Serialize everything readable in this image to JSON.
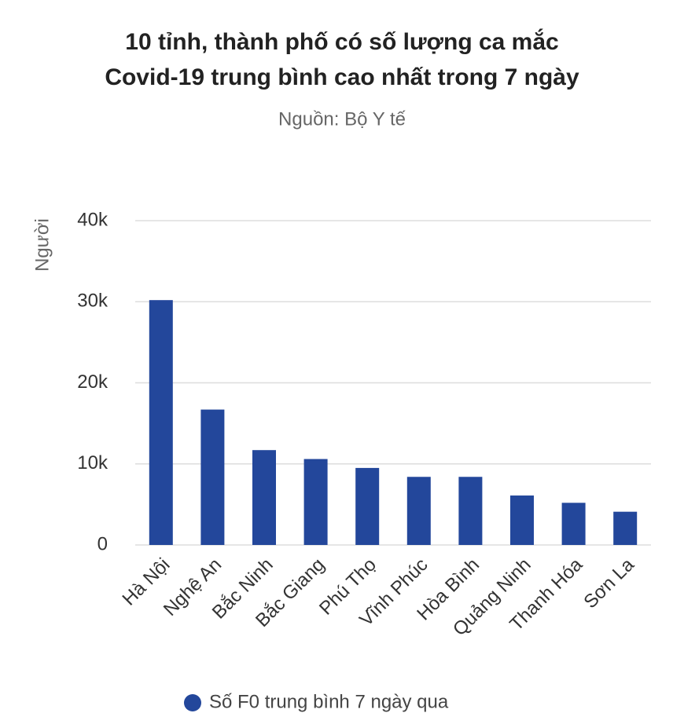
{
  "chart_data": {
    "type": "bar",
    "title": [
      "10 tỉnh, thành phố có số lượng ca mắc",
      "Covid-19 trung bình cao nhất trong 7 ngày"
    ],
    "subtitle": "Nguồn: Bộ Y tế",
    "y_label": "Người",
    "categories": [
      "Hà Nội",
      "Nghệ An",
      "Bắc Ninh",
      "Bắc Giang",
      "Phú Thọ",
      "Vĩnh Phúc",
      "Hòa Bình",
      "Quảng Ninh",
      "Thanh Hóa",
      "Sơn La"
    ],
    "series": [
      {
        "name": "Số F0 trung bình 7 ngày qua",
        "color": "#23479b",
        "values": [
          30200,
          16700,
          11700,
          10600,
          9500,
          8400,
          8400,
          6100,
          5200,
          4100
        ]
      }
    ],
    "ylim": [
      0,
      40000
    ],
    "yticks": [
      0,
      {
        "value": 10000,
        "label": "10k"
      },
      {
        "value": 20000,
        "label": "20k"
      },
      {
        "value": 30000,
        "label": "30k"
      },
      {
        "value": 40000,
        "label": "40k"
      }
    ],
    "grid": true,
    "legend": "bottom"
  }
}
